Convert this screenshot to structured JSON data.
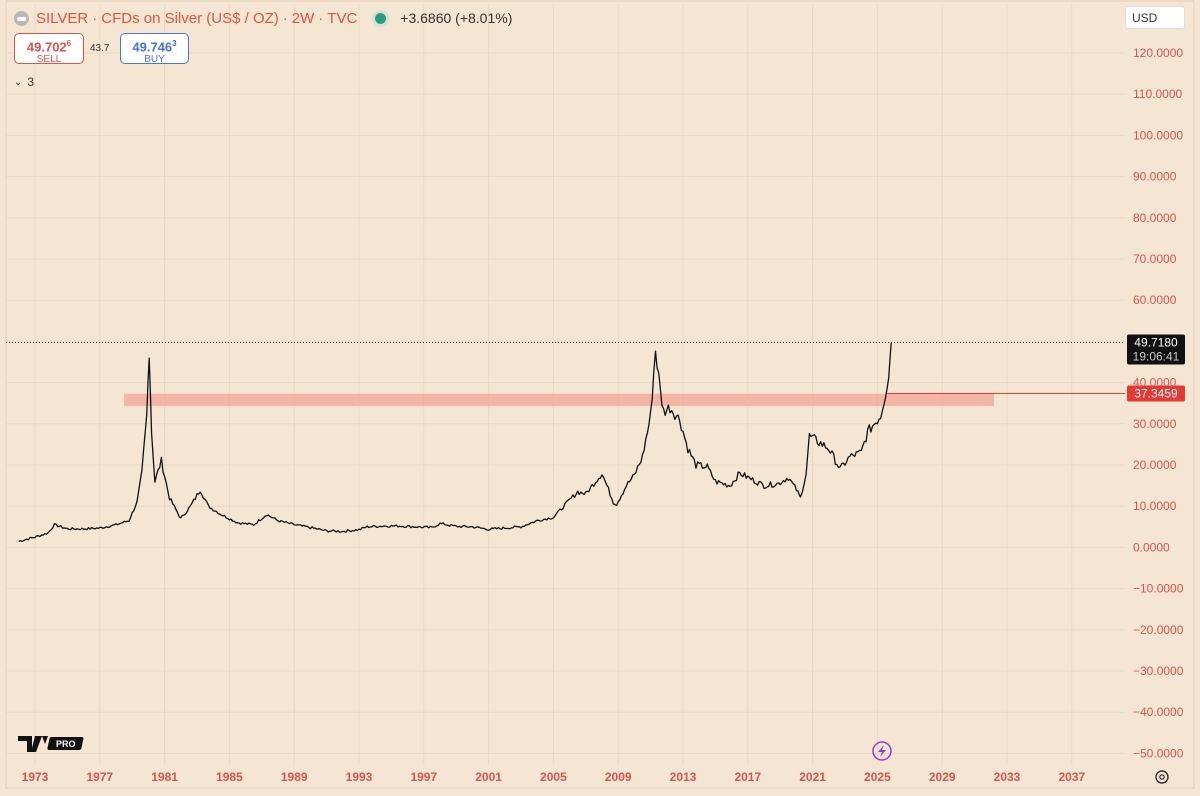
{
  "header": {
    "symbol": "SILVER",
    "sep1": "·",
    "description": "CFDs on Silver (US$ / OZ)",
    "sep2": "·",
    "interval": "2W",
    "sep3": "·",
    "source": "TVC",
    "change": "+3.6860 (+8.01%)"
  },
  "trade": {
    "sell_price": "49.702",
    "sell_sup": "6",
    "sell_label": "SELL",
    "spread": "43.7",
    "buy_price": "49.746",
    "buy_sup": "3",
    "buy_label": "BUY"
  },
  "indicators_count": "3",
  "currency": "USD",
  "price_tag": {
    "price": "49.7180",
    "countdown": "19:06:41"
  },
  "level_tag": "37.3459",
  "logo_text": "PRO",
  "colors": {
    "background": "#f5e6d3",
    "axis_text": "#d9534f",
    "candle": "#111111",
    "zone": "#f2a99a",
    "level_line": "#e53935",
    "price_tag_bg": "#111111",
    "level_tag_bg": "#e53935",
    "grid": "#ecd8c2"
  },
  "chart_data": {
    "type": "line",
    "title": "SILVER · CFDs on Silver (US$ / OZ) · 2W · TVC",
    "x_ticks": [
      "1973",
      "1977",
      "1981",
      "1985",
      "1989",
      "1993",
      "1997",
      "2001",
      "2005",
      "2009",
      "2013",
      "2017",
      "2021",
      "2025",
      "2029",
      "2033",
      "2037"
    ],
    "y_ticks": [
      "120.0000",
      "110.0000",
      "100.0000",
      "90.0000",
      "80.0000",
      "70.0000",
      "60.0000",
      "50.0000",
      "40.0000",
      "30.0000",
      "20.0000",
      "10.0000",
      "0.0000",
      "−10.0000",
      "−20.0000",
      "−30.0000",
      "−40.0000",
      "−50.0000"
    ],
    "ylim": [
      -52,
      124
    ],
    "xlim": [
      1972.0,
      2039.0
    ],
    "series": [
      {
        "x": [
          1972.0,
          1973.0,
          1973.8,
          1974.2,
          1975.0,
          1976.0,
          1977.0,
          1978.0,
          1978.8,
          1979.3,
          1979.6,
          1979.9,
          1980.05,
          1980.2,
          1980.4,
          1980.8,
          1981.3,
          1982.0,
          1982.6,
          1983.2,
          1983.7,
          1984.5,
          1985.5,
          1986.5,
          1987.3,
          1988.0,
          1989.0,
          1990.0,
          1991.0,
          1992.0,
          1993.0,
          1993.5,
          1994.5,
          1995.5,
          1996.5,
          1997.5,
          1998.0,
          1999.0,
          2000.0,
          2001.0,
          2002.0,
          2003.0,
          2004.0,
          2005.0,
          2006.0,
          2006.5,
          2007.0,
          2008.0,
          2008.7,
          2008.9,
          2009.5,
          2010.0,
          2010.5,
          2011.0,
          2011.3,
          2011.6,
          2011.8,
          2012.2,
          2012.8,
          2013.3,
          2013.8,
          2014.5,
          2015.0,
          2015.9,
          2016.5,
          2017.0,
          2018.0,
          2018.9,
          2019.5,
          2020.0,
          2020.25,
          2020.6,
          2020.8,
          2021.2,
          2022.0,
          2022.7,
          2023.3,
          2024.0,
          2024.4,
          2024.8,
          2025.2,
          2025.5,
          2025.7,
          2025.85
        ],
        "y": [
          1.5,
          2.5,
          3.5,
          5.5,
          4.5,
          4.5,
          4.7,
          5.5,
          6.5,
          11,
          18,
          32,
          48,
          28,
          16,
          21,
          12,
          7,
          10,
          14,
          10,
          8,
          6,
          5.5,
          8,
          6.5,
          5.5,
          4.8,
          4.0,
          3.9,
          4.3,
          5.0,
          5.2,
          5.2,
          5.0,
          4.8,
          5.8,
          5.1,
          5.0,
          4.4,
          4.7,
          5.0,
          6.5,
          7.3,
          11.5,
          13.5,
          13,
          18,
          11,
          10.5,
          15,
          17.5,
          22,
          32,
          48,
          38,
          33,
          34,
          31,
          24,
          20,
          19.5,
          16,
          15,
          18,
          17,
          15,
          15.5,
          17,
          14,
          12,
          18,
          27,
          26,
          24,
          19,
          22,
          23,
          28,
          30,
          32,
          37.5,
          42,
          49.7
        ]
      }
    ],
    "annotations": {
      "current_price": 49.718,
      "support_zone": [
        34.3,
        37.3
      ],
      "support_zone_x": [
        1978.5,
        2032.2
      ],
      "level_line": 37.3459
    },
    "grid": true,
    "legend": "none"
  }
}
